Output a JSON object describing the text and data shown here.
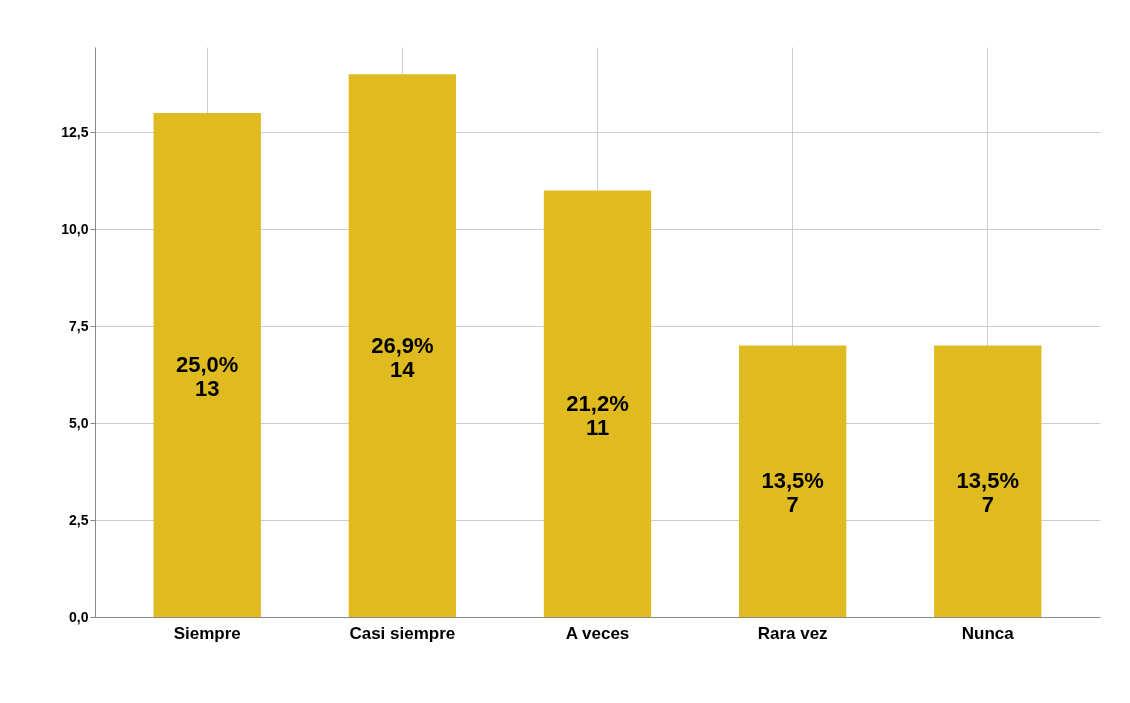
{
  "chart_data": {
    "type": "bar",
    "categories": [
      "Siempre",
      "Casi siempre",
      "A veces",
      "Rara vez",
      "Nunca"
    ],
    "values": [
      13,
      14,
      11,
      7,
      7
    ],
    "color": "#e0bb1f",
    "value_labels": [
      "25,0%\n13",
      "26,9%\n14",
      "21,2%\n11",
      "13,5%\n7",
      "13,5%\n7"
    ],
    "ylim": [
      0,
      14.7
    ],
    "yticks": [
      {
        "value": 0,
        "label": "0,0"
      },
      {
        "value": 2.5,
        "label": "2,5"
      },
      {
        "value": 5,
        "label": "5,0"
      },
      {
        "value": 7.5,
        "label": "7,5"
      },
      {
        "value": 10,
        "label": "10,0"
      },
      {
        "value": 12.5,
        "label": "12,5"
      }
    ],
    "grid": true
  }
}
